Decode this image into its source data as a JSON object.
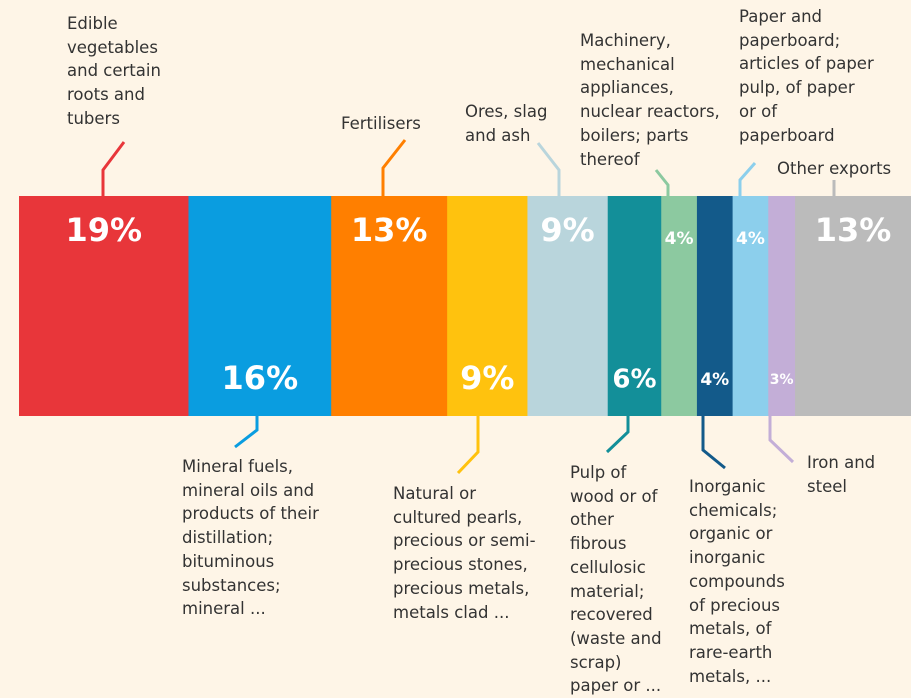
{
  "chart_data": {
    "type": "strip",
    "categories": [
      "Edible vegetables and certain roots and tubers",
      "Mineral fuels, mineral oils and products of their distillation; bituminous substances; mineral ...",
      "Fertilisers",
      "Natural or cultured pearls, precious or semi-precious stones, precious metals, metals clad ...",
      "Ores, slag and ash",
      "Pulp of wood or of other fibrous cellulosic material; recovered (waste and scrap) paper or ...",
      "Machinery, mechanical appliances, nuclear reactors, boilers; parts thereof",
      "Inorganic chemicals; organic or inorganic compounds of precious metals, of rare-earth metals, ...",
      "Paper and paperboard; articles of paper pulp, of paper or of paperboard",
      "Iron and steel",
      "Other exports"
    ],
    "values": [
      19,
      16,
      13,
      9,
      9,
      6,
      4,
      4,
      4,
      3,
      13
    ],
    "value_labels": [
      "19%",
      "16%",
      "13%",
      "9%",
      "9%",
      "6%",
      "4%",
      "4%",
      "4%",
      "3%",
      "13%"
    ],
    "colors": [
      "#e8363a",
      "#0a9de0",
      "#ff7f00",
      "#ffc20e",
      "#b9d5dc",
      "#138f99",
      "#8cc9a0",
      "#135a8a",
      "#8ccfec",
      "#c3aed7",
      "#bbbbbb"
    ]
  }
}
